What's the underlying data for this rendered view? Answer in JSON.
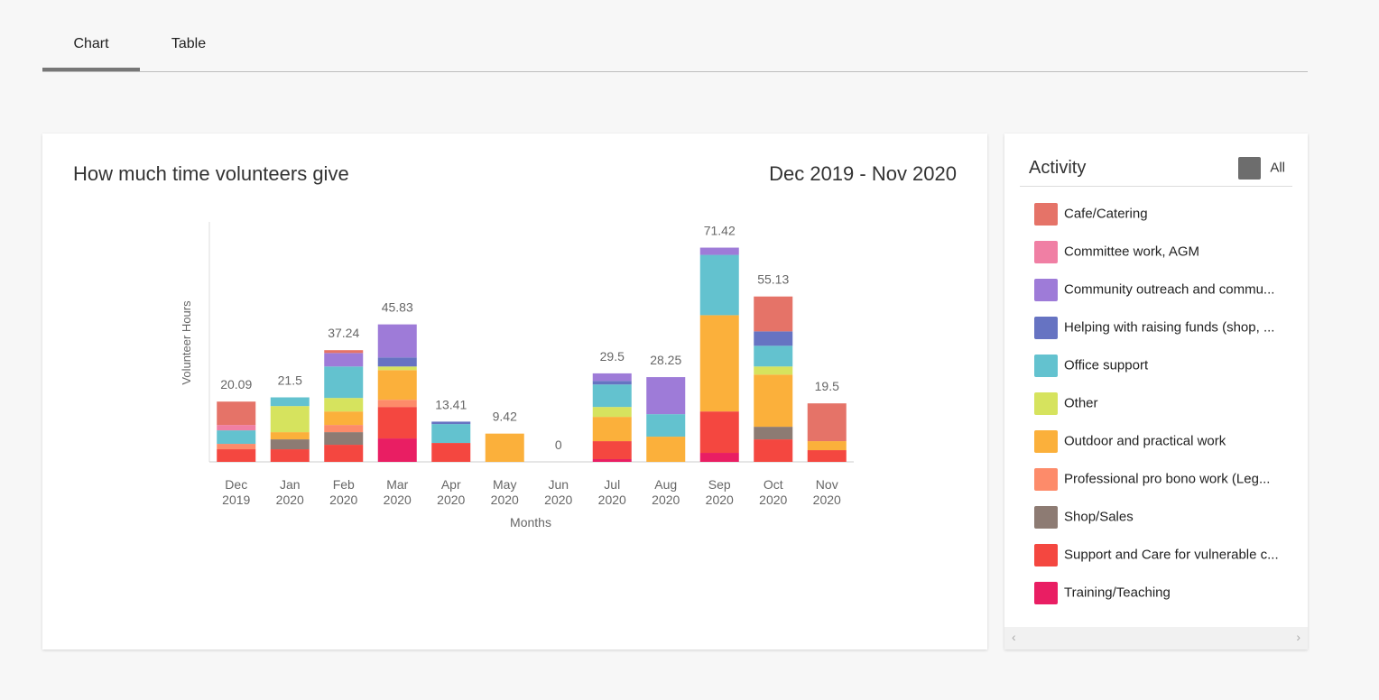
{
  "tabs": [
    "Chart",
    "Table"
  ],
  "legend_title": "Activity",
  "legend_all": "All",
  "chart_data": {
    "type": "stacked_bar",
    "title": "How much time volunteers give",
    "subtitle": "Dec 2019 - Nov 2020",
    "y_label": "Volunteer Hours",
    "x_label": "Months",
    "categories": [
      "Dec 2019",
      "Jan 2020",
      "Feb 2020",
      "Mar 2020",
      "Apr 2020",
      "May 2020",
      "Jun 2020",
      "Jul 2020",
      "Aug 2020",
      "Sep 2020",
      "Oct 2020",
      "Nov 2020"
    ],
    "totals": [
      20.09,
      21.5,
      37.24,
      45.83,
      13.41,
      9.42,
      0,
      29.5,
      28.25,
      71.42,
      55.13,
      19.5
    ],
    "ylim": [
      0,
      80
    ],
    "series": [
      {
        "name": "Cafe/Catering",
        "color": "#e57368",
        "values": [
          7.79,
          0,
          0.94,
          0,
          0,
          0,
          0,
          0,
          0,
          0,
          11.63,
          12.6
        ]
      },
      {
        "name": "Committee work, AGM",
        "color": "#f07fa4",
        "values": [
          1.8,
          0,
          0,
          0,
          0,
          0,
          0,
          0,
          0,
          0,
          0,
          0
        ]
      },
      {
        "name": "Community outreach and commu...",
        "color": "#9e7bd8",
        "values": [
          0,
          0,
          4.5,
          11.03,
          0,
          0,
          0,
          2.5,
          12.35,
          2.42,
          0,
          0
        ]
      },
      {
        "name": "Helping with raising funds (shop, ...",
        "color": "#6673c2",
        "values": [
          0,
          0,
          0,
          3.0,
          0.81,
          0,
          0,
          1.2,
          0,
          0,
          4.8,
          0
        ]
      },
      {
        "name": "Office support",
        "color": "#63c2cf",
        "values": [
          4.5,
          2.9,
          10.5,
          0,
          6.3,
          0,
          0,
          7.5,
          7.5,
          20.1,
          6.9,
          0
        ]
      },
      {
        "name": "Other",
        "color": "#d6e35e",
        "values": [
          0,
          8.7,
          4.5,
          1.2,
          0,
          0,
          0,
          3.3,
          0,
          0,
          2.7,
          0
        ]
      },
      {
        "name": "Outdoor and practical work",
        "color": "#fbb03b",
        "values": [
          0,
          2.4,
          4.5,
          9.9,
          0,
          9.42,
          0,
          8.1,
          8.4,
          32.1,
          17.4,
          3.0
        ]
      },
      {
        "name": "Professional pro bono work (Leg...",
        "color": "#fd8b6a",
        "values": [
          1.8,
          0,
          2.4,
          2.4,
          0,
          0,
          0,
          0,
          0,
          0,
          0,
          0
        ]
      },
      {
        "name": "Shop/Sales",
        "color": "#8d7b73",
        "values": [
          0,
          3.3,
          4.2,
          0,
          0,
          0,
          0,
          0,
          0,
          0,
          4.2,
          0
        ]
      },
      {
        "name": "Support and Care for vulnerable c...",
        "color": "#f44740",
        "values": [
          4.2,
          4.2,
          5.7,
          10.5,
          6.3,
          0,
          0,
          6.0,
          0,
          13.8,
          7.5,
          3.9
        ]
      },
      {
        "name": "Training/Teaching",
        "color": "#e91e63",
        "values": [
          0,
          0,
          0,
          7.8,
          0,
          0,
          0,
          0.9,
          0,
          3.0,
          0,
          0
        ]
      }
    ]
  }
}
